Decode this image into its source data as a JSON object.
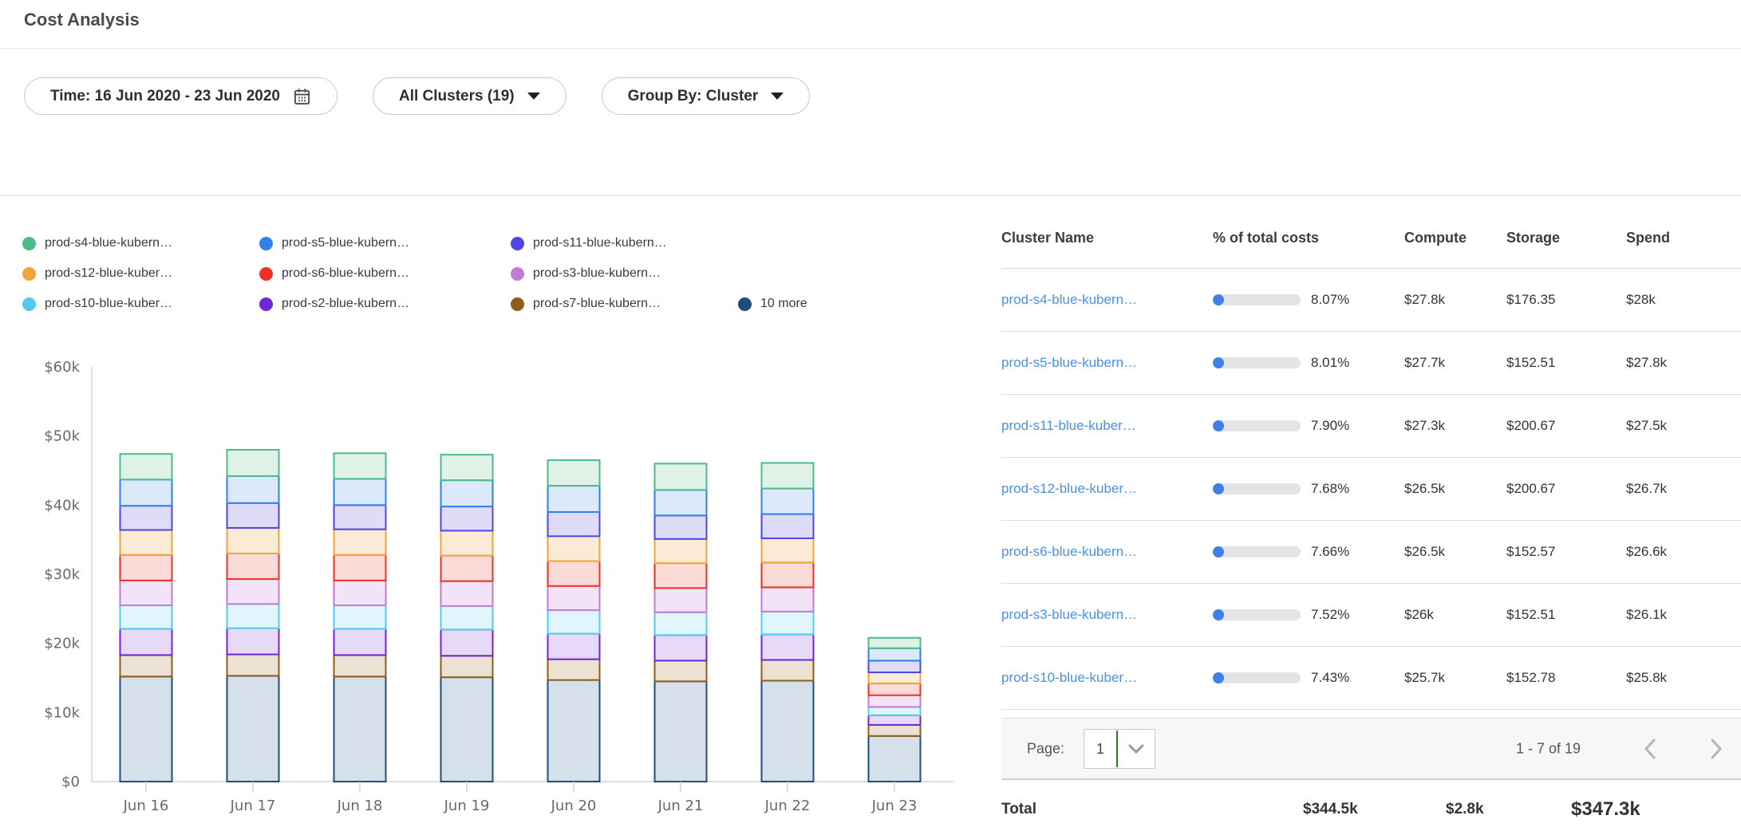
{
  "page": {
    "title": "Cost Analysis"
  },
  "filters": {
    "time_label": "Time: 16 Jun 2020 - 23 Jun 2020",
    "clusters_label": "All Clusters (19)",
    "group_by_label": "Group By: Cluster"
  },
  "chart_data": {
    "type": "bar",
    "stacked": true,
    "values_unit": "USD thousands",
    "categories": [
      "Jun 16",
      "Jun 17",
      "Jun 18",
      "Jun 19",
      "Jun 20",
      "Jun 21",
      "Jun 22",
      "Jun 23"
    ],
    "y_tick_labels": [
      "$0",
      "$10k",
      "$20k",
      "$30k",
      "$40k",
      "$50k",
      "$60k"
    ],
    "ylim": [
      0,
      60
    ],
    "grid": false,
    "legend_position": "top-left",
    "series": [
      {
        "name": "prod-s4-blue-kubern…",
        "color": "#4CBB8A",
        "fill": "#E0F2E8",
        "values": [
          3.7,
          3.8,
          3.7,
          3.7,
          3.7,
          3.8,
          3.7,
          1.5
        ]
      },
      {
        "name": "prod-s5-blue-kubern…",
        "color": "#2F81E8",
        "fill": "#DBE9FA",
        "values": [
          3.8,
          3.9,
          3.8,
          3.8,
          3.8,
          3.7,
          3.7,
          1.8
        ]
      },
      {
        "name": "prod-s11-blue-kubern…",
        "color": "#4E46E5",
        "fill": "#DFDCFA",
        "values": [
          3.5,
          3.6,
          3.5,
          3.5,
          3.5,
          3.4,
          3.5,
          1.7
        ]
      },
      {
        "name": "prod-s12-blue-kuber…",
        "color": "#F2A43A",
        "fill": "#FBEBD6",
        "values": [
          3.6,
          3.7,
          3.7,
          3.6,
          3.6,
          3.5,
          3.5,
          1.6
        ]
      },
      {
        "name": "prod-s6-blue-kubern…",
        "color": "#EE3124",
        "fill": "#FBDBD7",
        "values": [
          3.7,
          3.7,
          3.7,
          3.7,
          3.6,
          3.6,
          3.6,
          1.7
        ]
      },
      {
        "name": "prod-s3-blue-kubern…",
        "color": "#C17BD3",
        "fill": "#F2E3F7",
        "values": [
          3.6,
          3.6,
          3.6,
          3.6,
          3.5,
          3.5,
          3.5,
          1.7
        ]
      },
      {
        "name": "prod-s10-blue-kuber…",
        "color": "#53CBEE",
        "fill": "#E1F5FC",
        "values": [
          3.4,
          3.5,
          3.4,
          3.4,
          3.4,
          3.3,
          3.3,
          1.2
        ]
      },
      {
        "name": "prod-s2-blue-kubern…",
        "color": "#7125D9",
        "fill": "#E6DAF7",
        "values": [
          3.8,
          3.8,
          3.8,
          3.8,
          3.7,
          3.7,
          3.7,
          1.4
        ]
      },
      {
        "name": "prod-s7-blue-kubern…",
        "color": "#8F5D18",
        "fill": "#EBE2D3",
        "values": [
          3.1,
          3.1,
          3.1,
          3.1,
          3.0,
          3.0,
          3.0,
          1.6
        ]
      },
      {
        "name": "10 more",
        "color": "#1D4D7B",
        "fill": "#D6E0EA",
        "values": [
          15.2,
          15.3,
          15.2,
          15.1,
          14.7,
          14.5,
          14.6,
          6.6
        ]
      }
    ],
    "stack_order_note": "series listed top-of-stack first; rendered bottom-up in reverse order"
  },
  "table": {
    "headers": [
      "Cluster Name",
      "% of total costs",
      "Compute",
      "Storage",
      "Spend"
    ],
    "rows": [
      {
        "name": "prod-s4-blue-kubern…",
        "pct_value": 8.07,
        "pct": "8.07%",
        "compute": "$27.8k",
        "storage": "$176.35",
        "spend": "$28k"
      },
      {
        "name": "prod-s5-blue-kubern…",
        "pct_value": 8.01,
        "pct": "8.01%",
        "compute": "$27.7k",
        "storage": "$152.51",
        "spend": "$27.8k"
      },
      {
        "name": "prod-s11-blue-kuber…",
        "pct_value": 7.9,
        "pct": "7.90%",
        "compute": "$27.3k",
        "storage": "$200.67",
        "spend": "$27.5k"
      },
      {
        "name": "prod-s12-blue-kuber…",
        "pct_value": 7.68,
        "pct": "7.68%",
        "compute": "$26.5k",
        "storage": "$200.67",
        "spend": "$26.7k"
      },
      {
        "name": "prod-s6-blue-kubern…",
        "pct_value": 7.66,
        "pct": "7.66%",
        "compute": "$26.5k",
        "storage": "$152.57",
        "spend": "$26.6k"
      },
      {
        "name": "prod-s3-blue-kubern…",
        "pct_value": 7.52,
        "pct": "7.52%",
        "compute": "$26k",
        "storage": "$152.51",
        "spend": "$26.1k"
      },
      {
        "name": "prod-s10-blue-kuber…",
        "pct_value": 7.43,
        "pct": "7.43%",
        "compute": "$25.7k",
        "storage": "$152.78",
        "spend": "$25.8k"
      }
    ],
    "total": {
      "label": "Total",
      "compute": "$344.5k",
      "storage": "$2.8k",
      "spend": "$347.3k"
    }
  },
  "pagination": {
    "page_label": "Page:",
    "current_page": "1",
    "range_text": "1 - 7 of 19"
  }
}
